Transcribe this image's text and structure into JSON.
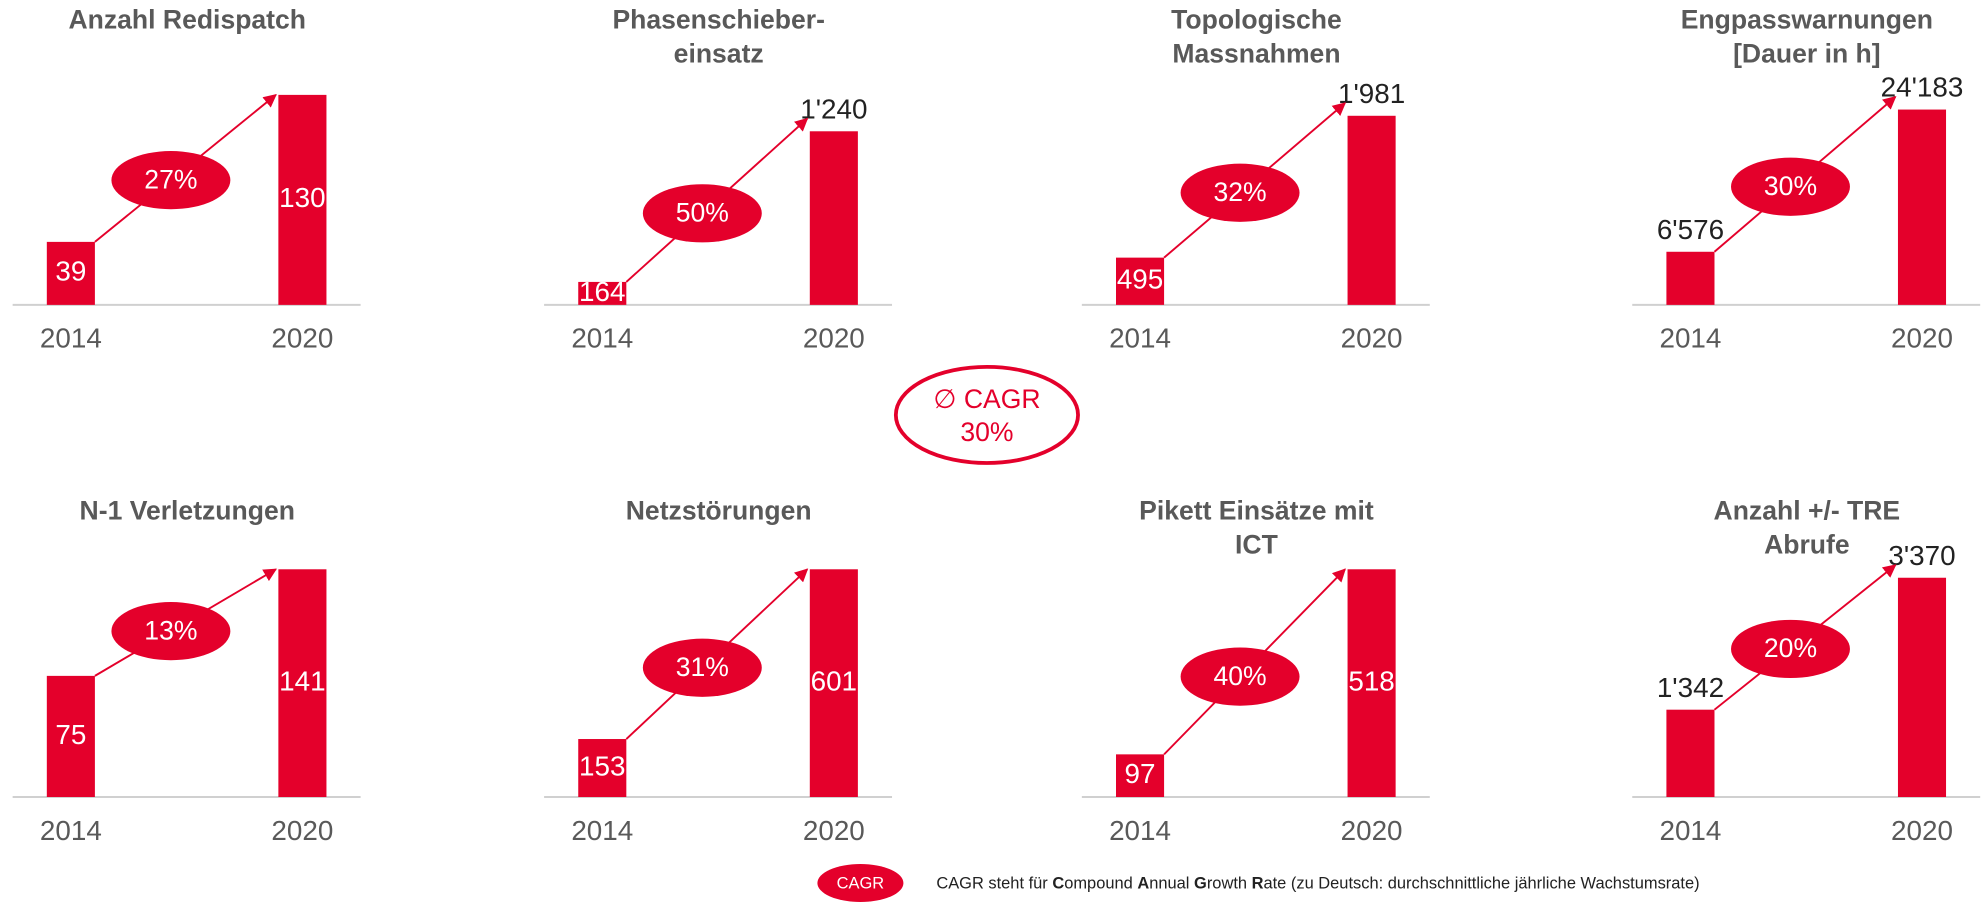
{
  "chart_data": [
    {
      "type": "bar",
      "title": [
        "Anzahl Redispatch"
      ],
      "categories": [
        "2014",
        "2020"
      ],
      "values": [
        39,
        130
      ],
      "label_inside": [
        true,
        true
      ],
      "cagr": "27%",
      "ylim": [
        0,
        130
      ],
      "color": "#e4002b"
    },
    {
      "type": "bar",
      "title": [
        "Phasenschieber-",
        "einsatz"
      ],
      "categories": [
        "2014",
        "2020"
      ],
      "values": [
        164,
        1240
      ],
      "value_labels": [
        "164",
        "1'240"
      ],
      "label_inside": [
        true,
        false
      ],
      "cagr": "50%",
      "ylim": [
        0,
        1500
      ],
      "color": "#e4002b"
    },
    {
      "type": "bar",
      "title": [
        "Topologische",
        "Massnahmen"
      ],
      "categories": [
        "2014",
        "2020"
      ],
      "values": [
        495,
        1981
      ],
      "value_labels": [
        "495",
        "1'981"
      ],
      "label_inside": [
        true,
        false
      ],
      "cagr": "32%",
      "ylim": [
        0,
        2200
      ],
      "color": "#e4002b"
    },
    {
      "type": "bar",
      "title": [
        "Engpasswarnungen",
        "[Dauer in h]"
      ],
      "categories": [
        "2014",
        "2020"
      ],
      "values": [
        6576,
        24183
      ],
      "value_labels": [
        "6'576",
        "24'183"
      ],
      "label_inside": [
        false,
        false
      ],
      "cagr": "30%",
      "ylim": [
        0,
        26000
      ],
      "color": "#e4002b"
    },
    {
      "type": "bar",
      "title": [
        "N-1 Verletzungen"
      ],
      "categories": [
        "2014",
        "2020"
      ],
      "values": [
        75,
        141
      ],
      "label_inside": [
        true,
        true
      ],
      "cagr": "13%",
      "ylim": [
        0,
        141
      ],
      "color": "#e4002b"
    },
    {
      "type": "bar",
      "title": [
        "Netzstörungen"
      ],
      "categories": [
        "2014",
        "2020"
      ],
      "values": [
        153,
        601
      ],
      "label_inside": [
        true,
        true
      ],
      "cagr": "31%",
      "ylim": [
        0,
        601
      ],
      "color": "#e4002b"
    },
    {
      "type": "bar",
      "title": [
        "Pikett Einsätze mit",
        "ICT"
      ],
      "categories": [
        "2014",
        "2020"
      ],
      "values": [
        97,
        518
      ],
      "label_inside": [
        true,
        true
      ],
      "cagr": "40%",
      "ylim": [
        0,
        518
      ],
      "color": "#e4002b"
    },
    {
      "type": "bar",
      "title": [
        "Anzahl +/- TRE",
        "Abrufe"
      ],
      "categories": [
        "2014",
        "2020"
      ],
      "values": [
        1342,
        3370
      ],
      "value_labels": [
        "1'342",
        "3'370"
      ],
      "label_inside": [
        false,
        false
      ],
      "cagr": "20%",
      "ylim": [
        0,
        3500
      ],
      "color": "#e4002b"
    }
  ],
  "average": {
    "label": "∅ CAGR",
    "value": "30%"
  },
  "footer": {
    "badge": "CAGR",
    "text": [
      {
        "text": "CAGR steht für ",
        "bold": false
      },
      {
        "text": "C",
        "bold": true
      },
      {
        "text": "ompound ",
        "bold": false
      },
      {
        "text": "A",
        "bold": true
      },
      {
        "text": "nnual ",
        "bold": false
      },
      {
        "text": "G",
        "bold": true
      },
      {
        "text": "rowth ",
        "bold": false
      },
      {
        "text": "R",
        "bold": true
      },
      {
        "text": "ate (zu Deutsch: durchschnittliche jährliche Wachstumsrate)",
        "bold": false
      }
    ]
  }
}
